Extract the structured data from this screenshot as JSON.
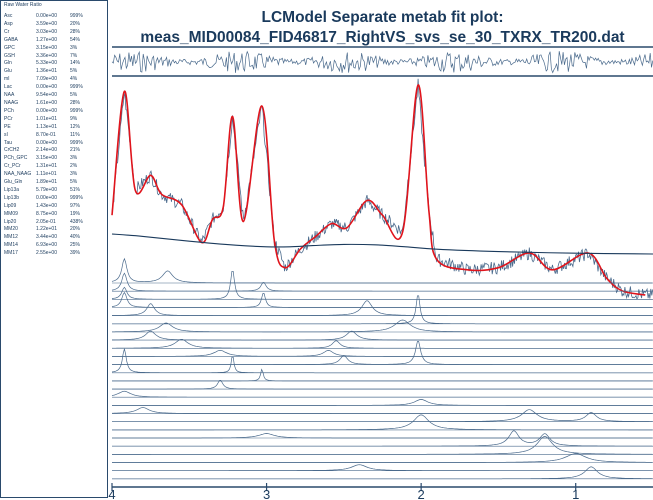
{
  "panel": {
    "title": "Raw Water Ratio",
    "rows": [
      {
        "name": "Asc",
        "conc": "0.00e+00",
        "sd": "999%"
      },
      {
        "name": "Asp",
        "conc": "3.59e+00",
        "sd": "20%"
      },
      {
        "name": "Cr",
        "conc": "3.03e+00",
        "sd": "28%"
      },
      {
        "name": "GABA",
        "conc": "1.27e+00",
        "sd": "54%"
      },
      {
        "name": "GPC",
        "conc": "3.15e+00",
        "sd": "3%"
      },
      {
        "name": "GSH",
        "conc": "3.36e+00",
        "sd": "7%"
      },
      {
        "name": "Gln",
        "conc": "5.33e+00",
        "sd": "14%"
      },
      {
        "name": "Glu",
        "conc": "1.36e+01",
        "sd": "5%"
      },
      {
        "name": "mI",
        "conc": "7.09e+00",
        "sd": "4%"
      },
      {
        "name": "Lac",
        "conc": "0.00e+00",
        "sd": "999%"
      },
      {
        "name": "NAA",
        "conc": "9.54e+00",
        "sd": "5%"
      },
      {
        "name": "NAAG",
        "conc": "1.61e+00",
        "sd": "28%"
      },
      {
        "name": "PCh",
        "conc": "0.00e+00",
        "sd": "999%"
      },
      {
        "name": "PCr",
        "conc": "1.01e+01",
        "sd": "9%"
      },
      {
        "name": "PE",
        "conc": "1.13e+01",
        "sd": "12%"
      },
      {
        "name": "sI",
        "conc": "8.70e-01",
        "sd": "11%"
      },
      {
        "name": "Tau",
        "conc": "0.00e+00",
        "sd": "999%"
      },
      {
        "name": "CrCH2",
        "conc": "2.14e+00",
        "sd": "21%"
      },
      {
        "name": "PCh_GPC",
        "conc": "3.15e+00",
        "sd": "3%"
      },
      {
        "name": "Cr_PCr",
        "conc": "1.31e+01",
        "sd": "2%"
      },
      {
        "name": "NAA_NAAG",
        "conc": "1.11e+01",
        "sd": "3%"
      },
      {
        "name": "Glu_Gln",
        "conc": "1.89e+01",
        "sd": "5%"
      },
      {
        "name": "Lip13a",
        "conc": "5.79e+00",
        "sd": "51%"
      },
      {
        "name": "Lip13b",
        "conc": "0.00e+00",
        "sd": "999%"
      },
      {
        "name": "Lip09",
        "conc": "1.43e+00",
        "sd": "97%"
      },
      {
        "name": "MM09",
        "conc": "8.75e+00",
        "sd": "19%"
      },
      {
        "name": "Lip20",
        "conc": "2.05e-01",
        "sd": "438%"
      },
      {
        "name": "MM20",
        "conc": "1.22e+01",
        "sd": "20%"
      },
      {
        "name": "MM12",
        "conc": "3.44e+00",
        "sd": "40%"
      },
      {
        "name": "MM14",
        "conc": "6.93e+00",
        "sd": "25%"
      },
      {
        "name": "MM17",
        "conc": "2.55e+00",
        "sd": "39%"
      }
    ]
  },
  "chart_data": {
    "type": "line",
    "title": "LCModel Separate metab fit plot:",
    "subtitle": "meas_MID00084_FID46817_RightVS_svs_se_30_TXRX_TR200.dat",
    "xlabel": "",
    "ylabel": "",
    "x_axis": {
      "reversed": true,
      "xlim": [
        4.0,
        0.5
      ],
      "ticks": [
        4,
        3,
        2,
        1
      ]
    },
    "panels": [
      "residual",
      "spectrum-fit-baseline",
      "individual-metabolite-fits"
    ],
    "series": [
      {
        "name": "",
        "role": "data",
        "color": "#4a6a8c"
      },
      {
        "name": "",
        "role": "fit",
        "color": "#e0141c",
        "points": [
          [
            4.0,
            0.38
          ],
          [
            3.92,
            0.97
          ],
          [
            3.85,
            0.5
          ],
          [
            3.75,
            0.57
          ],
          [
            3.68,
            0.48
          ],
          [
            3.55,
            0.43
          ],
          [
            3.42,
            0.25
          ],
          [
            3.35,
            0.36
          ],
          [
            3.28,
            0.42
          ],
          [
            3.22,
            0.85
          ],
          [
            3.15,
            0.35
          ],
          [
            3.03,
            0.9
          ],
          [
            2.95,
            0.26
          ],
          [
            2.88,
            0.13
          ],
          [
            2.78,
            0.22
          ],
          [
            2.68,
            0.28
          ],
          [
            2.58,
            0.34
          ],
          [
            2.48,
            0.32
          ],
          [
            2.35,
            0.45
          ],
          [
            2.25,
            0.38
          ],
          [
            2.12,
            0.3
          ],
          [
            2.02,
            1.0
          ],
          [
            1.95,
            0.4
          ],
          [
            1.9,
            0.17
          ],
          [
            1.7,
            0.12
          ],
          [
            1.5,
            0.13
          ],
          [
            1.3,
            0.2
          ],
          [
            1.15,
            0.12
          ],
          [
            0.92,
            0.2
          ],
          [
            0.8,
            0.08
          ],
          [
            0.7,
            0.02
          ],
          [
            0.55,
            0.0
          ]
        ]
      },
      {
        "name": "",
        "role": "baseline",
        "color": "#1a3a5c",
        "points": [
          [
            4.0,
            0.2
          ],
          [
            3.8,
            0.17
          ],
          [
            3.5,
            0.11
          ],
          [
            3.2,
            0.06
          ],
          [
            3.0,
            0.04
          ],
          [
            2.85,
            0.04
          ],
          [
            2.7,
            0.055
          ],
          [
            2.5,
            0.07
          ],
          [
            2.3,
            0.065
          ],
          [
            2.1,
            0.04
          ],
          [
            1.9,
            0.01
          ],
          [
            1.5,
            -0.02
          ],
          [
            1.0,
            -0.04
          ],
          [
            0.5,
            -0.05
          ]
        ]
      }
    ]
  },
  "colors": {
    "text": "#1a3a5c",
    "fit": "#e0141c",
    "data": "#4a6a8c",
    "frame": "#2a4a6c"
  }
}
